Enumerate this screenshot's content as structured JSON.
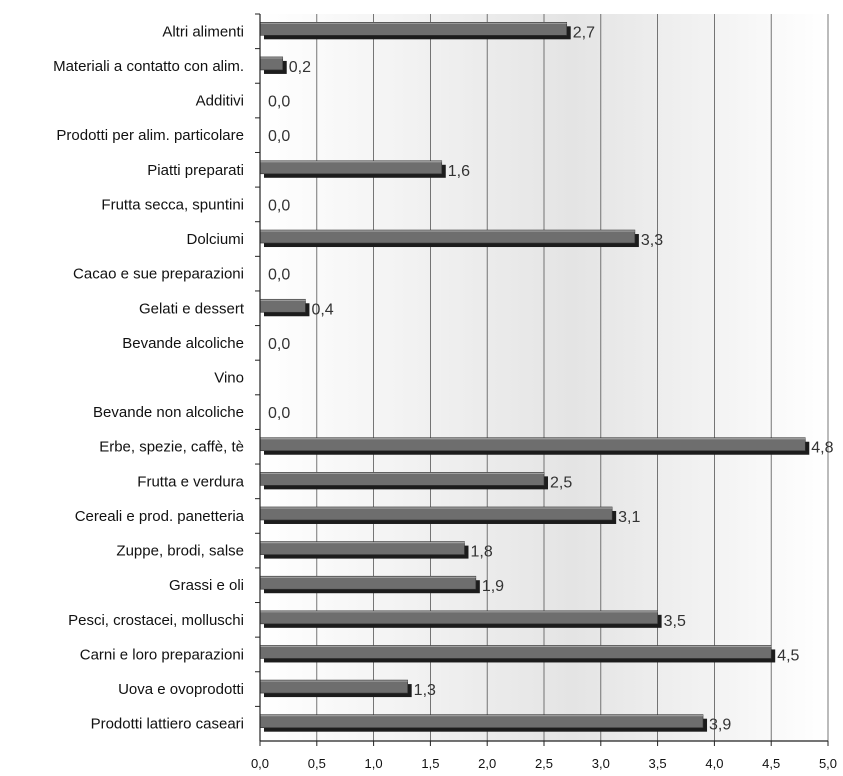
{
  "chart_data": {
    "type": "bar",
    "orientation": "horizontal",
    "categories": [
      "Altri alimenti",
      "Materiali a contatto con alim.",
      "Additivi",
      "Prodotti per alim. particolare",
      "Piatti preparati",
      "Frutta secca, spuntini",
      "Dolciumi",
      "Cacao e sue preparazioni",
      "Gelati e dessert",
      "Bevande alcoliche",
      "Vino",
      "Bevande non alcoliche",
      "Erbe, spezie, caffè, tè",
      "Frutta e verdura",
      "Cereali e prod. panetteria",
      "Zuppe, brodi, salse",
      "Grassi e oli",
      "Pesci, crostacei, molluschi",
      "Carni e loro preparazioni",
      "Uova e ovoprodotti",
      "Prodotti lattiero caseari"
    ],
    "values": [
      2.7,
      0.2,
      0.0,
      0.0,
      1.6,
      0.0,
      3.3,
      0.0,
      0.4,
      0.0,
      null,
      0.0,
      4.8,
      2.5,
      3.1,
      1.8,
      1.9,
      3.5,
      4.5,
      1.3,
      3.9
    ],
    "value_labels": [
      "2,7",
      "0,2",
      "0,0",
      "0,0",
      "1,6",
      "0,0",
      "3,3",
      "0,0",
      "0,4",
      "0,0",
      "",
      "0,0",
      "4,8",
      "2,5",
      "3,1",
      "1,8",
      "1,9",
      "3,5",
      "4,5",
      "1,3",
      "3,9"
    ],
    "x_ticks": [
      "0,0",
      "0,5",
      "1,0",
      "1,5",
      "2,0",
      "2,5",
      "3,0",
      "3,5",
      "4,0",
      "4,5",
      "5,0"
    ],
    "xlim": [
      0,
      5
    ],
    "grid": true,
    "legend": "none",
    "colors": {
      "bar_face": "#6e6e6e",
      "bar_shadow": "#1c1c1c",
      "bar_top": "#a0a0a0",
      "plot_background_edge": "#ffffff",
      "plot_background_center": "#e6e6e6",
      "gridline": "#555555"
    }
  }
}
